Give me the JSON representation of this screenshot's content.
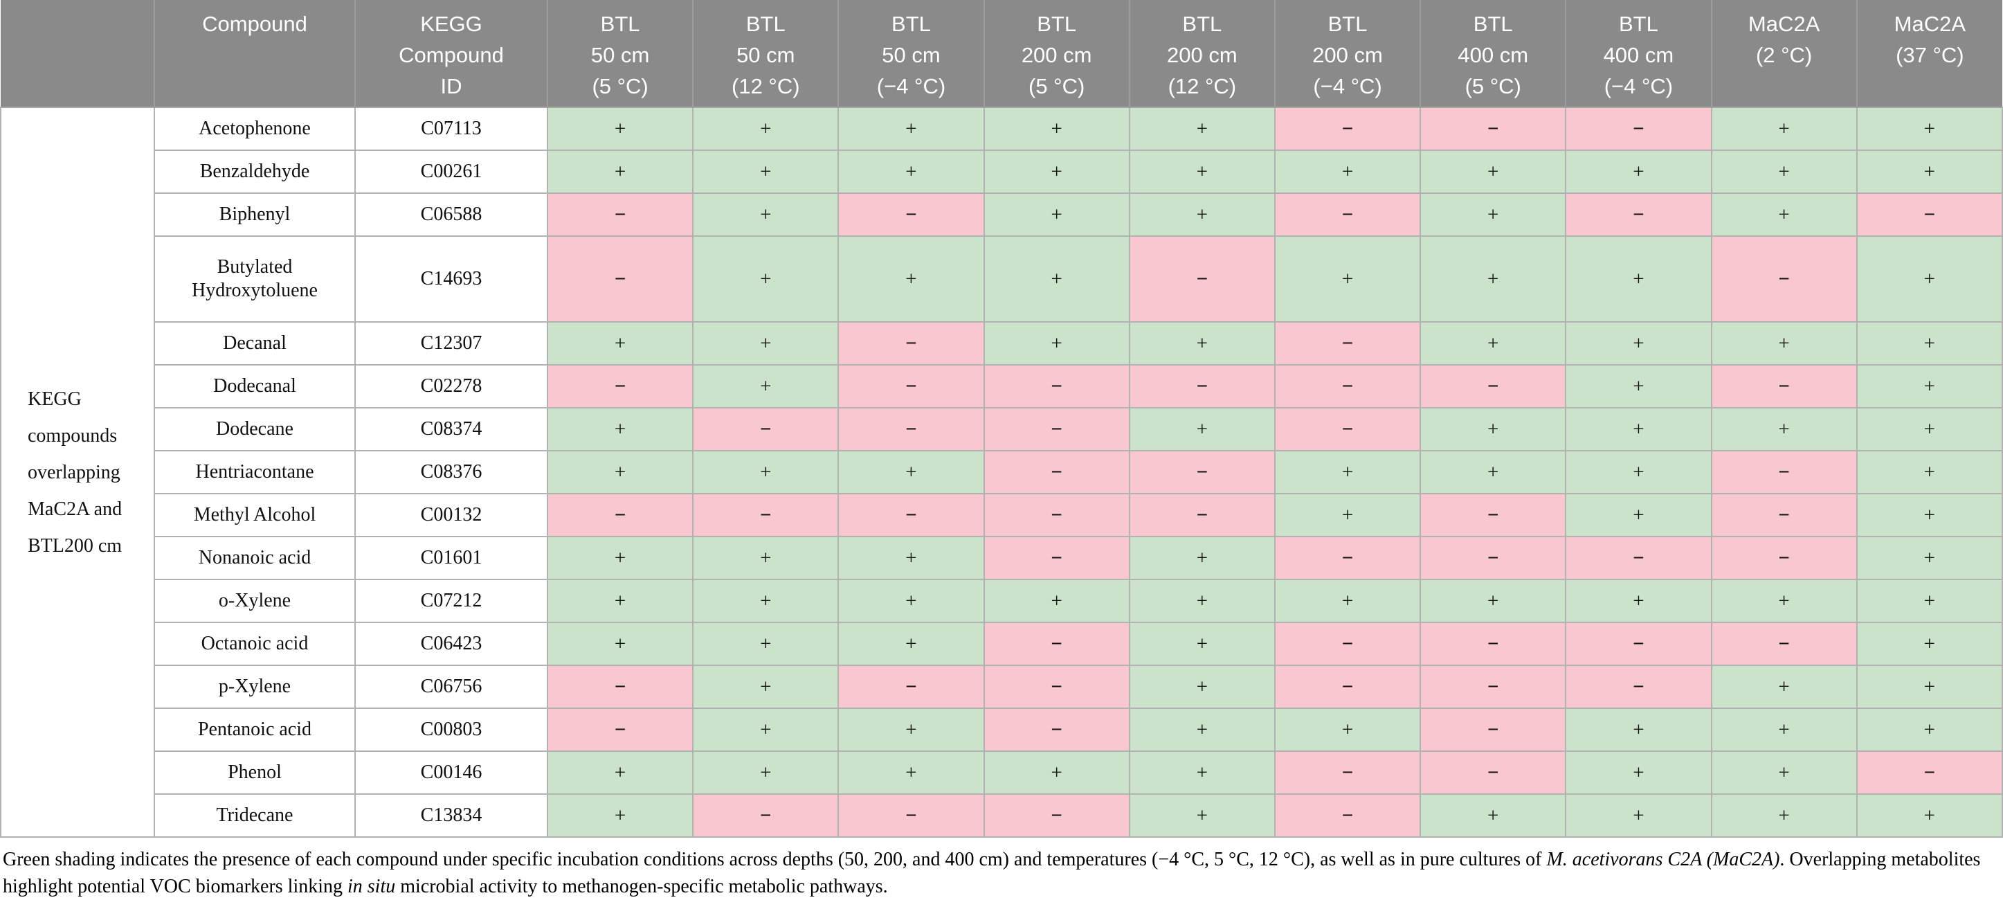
{
  "table": {
    "row_group_label": "KEGG\ncompounds\noverlapping\nMaC2A and\nBTL200 cm",
    "columns": [
      {
        "label": ""
      },
      {
        "label": "Compound"
      },
      {
        "label": "KEGG\nCompound\nID"
      },
      {
        "label": "BTL\n50 cm\n(5 °C)"
      },
      {
        "label": "BTL\n50 cm\n(12 °C)"
      },
      {
        "label": "BTL\n50 cm\n(−4 °C)"
      },
      {
        "label": "BTL\n200 cm\n(5 °C)"
      },
      {
        "label": "BTL\n200 cm\n(12 °C)"
      },
      {
        "label": "BTL\n200 cm\n(−4 °C)"
      },
      {
        "label": "BTL\n400 cm\n(5 °C)"
      },
      {
        "label": "BTL\n400 cm\n(−4 °C)"
      },
      {
        "label": "MaC2A\n(2 °C)"
      },
      {
        "label": "MaC2A\n(37 °C)"
      }
    ],
    "rows": [
      {
        "compound": "Acetophenone",
        "kegg_id": "C07113",
        "tall": false,
        "values": [
          "+",
          "+",
          "+",
          "+",
          "+",
          "−",
          "−",
          "−",
          "+",
          "+"
        ]
      },
      {
        "compound": "Benzaldehyde",
        "kegg_id": "C00261",
        "tall": false,
        "values": [
          "+",
          "+",
          "+",
          "+",
          "+",
          "+",
          "+",
          "+",
          "+",
          "+"
        ]
      },
      {
        "compound": "Biphenyl",
        "kegg_id": "C06588",
        "tall": false,
        "values": [
          "−",
          "+",
          "−",
          "+",
          "+",
          "−",
          "+",
          "−",
          "+",
          "−"
        ]
      },
      {
        "compound": "Butylated Hydroxytoluene",
        "kegg_id": "C14693",
        "tall": true,
        "values": [
          "−",
          "+",
          "+",
          "+",
          "−",
          "+",
          "+",
          "+",
          "−",
          "+"
        ]
      },
      {
        "compound": "Decanal",
        "kegg_id": "C12307",
        "tall": false,
        "values": [
          "+",
          "+",
          "−",
          "+",
          "+",
          "−",
          "+",
          "+",
          "+",
          "+"
        ]
      },
      {
        "compound": "Dodecanal",
        "kegg_id": "C02278",
        "tall": false,
        "values": [
          "−",
          "+",
          "−",
          "−",
          "−",
          "−",
          "−",
          "+",
          "−",
          "+"
        ]
      },
      {
        "compound": "Dodecane",
        "kegg_id": "C08374",
        "tall": false,
        "values": [
          "+",
          "−",
          "−",
          "−",
          "+",
          "−",
          "+",
          "+",
          "+",
          "+"
        ]
      },
      {
        "compound": "Hentriacontane",
        "kegg_id": "C08376",
        "tall": false,
        "values": [
          "+",
          "+",
          "+",
          "−",
          "−",
          "+",
          "+",
          "+",
          "−",
          "+"
        ]
      },
      {
        "compound": "Methyl Alcohol",
        "kegg_id": "C00132",
        "tall": false,
        "values": [
          "−",
          "−",
          "−",
          "−",
          "−",
          "+",
          "−",
          "+",
          "−",
          "+"
        ]
      },
      {
        "compound": "Nonanoic acid",
        "kegg_id": "C01601",
        "tall": false,
        "values": [
          "+",
          "+",
          "+",
          "−",
          "+",
          "−",
          "−",
          "−",
          "−",
          "+"
        ]
      },
      {
        "compound": "o-Xylene",
        "kegg_id": "C07212",
        "tall": false,
        "values": [
          "+",
          "+",
          "+",
          "+",
          "+",
          "+",
          "+",
          "+",
          "+",
          "+"
        ]
      },
      {
        "compound": "Octanoic acid",
        "kegg_id": "C06423",
        "tall": false,
        "values": [
          "+",
          "+",
          "+",
          "−",
          "+",
          "−",
          "−",
          "−",
          "−",
          "+"
        ]
      },
      {
        "compound": "p-Xylene",
        "kegg_id": "C06756",
        "tall": false,
        "values": [
          "−",
          "+",
          "−",
          "−",
          "+",
          "−",
          "−",
          "−",
          "+",
          "+"
        ]
      },
      {
        "compound": "Pentanoic acid",
        "kegg_id": "C00803",
        "tall": false,
        "values": [
          "−",
          "+",
          "+",
          "−",
          "+",
          "+",
          "−",
          "+",
          "+",
          "+"
        ]
      },
      {
        "compound": "Phenol",
        "kegg_id": "C00146",
        "tall": false,
        "values": [
          "+",
          "+",
          "+",
          "+",
          "+",
          "−",
          "−",
          "+",
          "+",
          "−"
        ]
      },
      {
        "compound": "Tridecane",
        "kegg_id": "C13834",
        "tall": false,
        "values": [
          "+",
          "−",
          "−",
          "−",
          "+",
          "−",
          "+",
          "+",
          "+",
          "+"
        ]
      }
    ],
    "legend": {
      "positive_symbol": "+",
      "negative_symbol": "−"
    }
  },
  "caption": {
    "segments": [
      {
        "text": "Green shading indicates the presence of each compound under specific incubation conditions across depths (50, 200, and 400 cm) and temperatures (−4 °C, 5 °C, 12 °C), as well as in pure cultures of ",
        "italic": false
      },
      {
        "text": "M. acetivorans C2A (MaC2A)",
        "italic": true
      },
      {
        "text": ". Overlapping metabolites highlight potential VOC biomarkers linking ",
        "italic": false
      },
      {
        "text": "in situ",
        "italic": true
      },
      {
        "text": " microbial activity to methanogen-specific metabolic pathways.",
        "italic": false
      }
    ]
  },
  "colors": {
    "header_background": "#8a8a8a",
    "header_text": "#ffffff",
    "presence_green": "#cbe2cb",
    "absence_pink": "#f9c7d0",
    "gridline": "#b2b2b2"
  }
}
